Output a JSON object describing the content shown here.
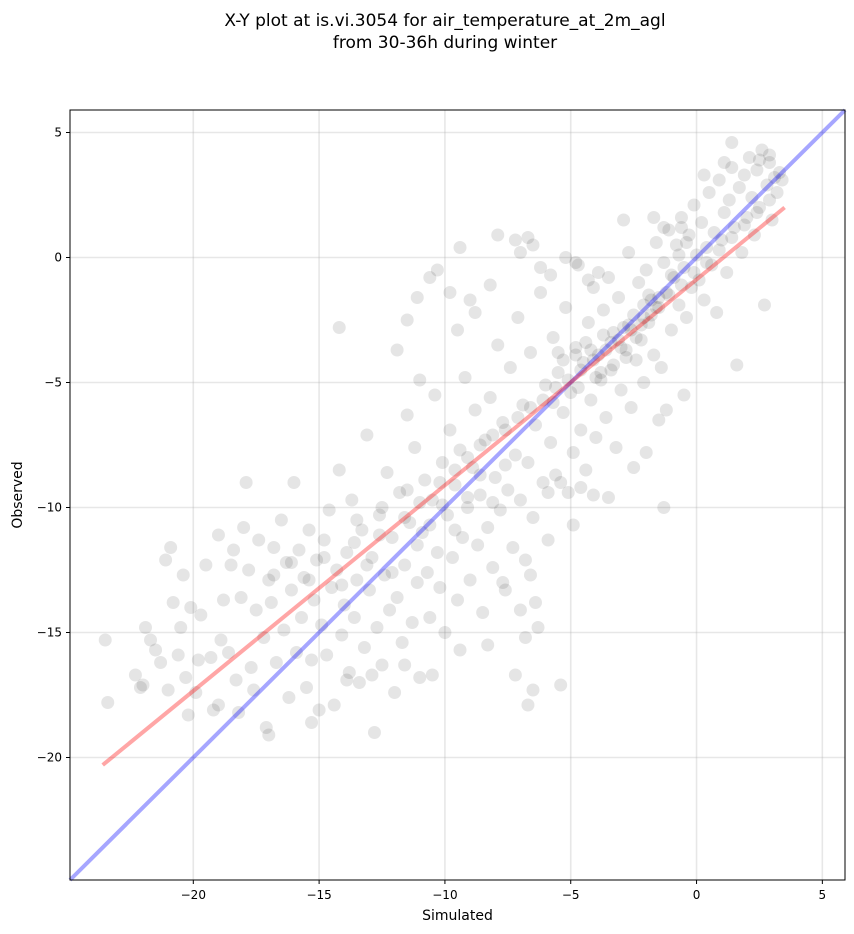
{
  "chart_data": {
    "type": "scatter",
    "title_line1": "X-Y plot at is.vi.3054 for air_temperature_at_2m_agl",
    "title_line2": "from 30-36h during winter",
    "xlabel": "Simulated",
    "ylabel": "Observed",
    "xlim": [
      -24.9,
      5.9
    ],
    "ylim": [
      -24.9,
      5.9
    ],
    "xticks": [
      -20,
      -15,
      -10,
      -5,
      0,
      5
    ],
    "yticks": [
      -20,
      -15,
      -10,
      -5,
      0,
      5
    ],
    "xtick_labels": [
      "−20",
      "−15",
      "−10",
      "−5",
      "0",
      "5"
    ],
    "ytick_labels": [
      "−20",
      "−15",
      "−10",
      "−5",
      "0",
      "5"
    ],
    "grid": true,
    "point_color": "#000000",
    "point_alpha": 0.1,
    "lines": [
      {
        "kind": "identity",
        "color": "#0000ff",
        "alpha": 0.35,
        "x": [
          -24.9,
          5.9
        ],
        "y": [
          -24.9,
          5.9
        ]
      },
      {
        "kind": "fit",
        "color": "#ff0000",
        "alpha": 0.35,
        "x": [
          -23.6,
          3.5
        ],
        "y": [
          -20.3,
          2.0
        ]
      }
    ],
    "points": [
      [
        -23.5,
        -15.3
      ],
      [
        -23.4,
        -17.8
      ],
      [
        -22.3,
        -16.7
      ],
      [
        -22.1,
        -17.2
      ],
      [
        -21.9,
        -14.8
      ],
      [
        -21.7,
        -15.3
      ],
      [
        -21.5,
        -15.7
      ],
      [
        -21.3,
        -16.2
      ],
      [
        -21.1,
        -12.1
      ],
      [
        -21.0,
        -17.3
      ],
      [
        -20.9,
        -11.6
      ],
      [
        -20.8,
        -13.8
      ],
      [
        -20.6,
        -15.9
      ],
      [
        -20.5,
        -14.8
      ],
      [
        -20.4,
        -12.7
      ],
      [
        -20.3,
        -16.8
      ],
      [
        -20.1,
        -14.0
      ],
      [
        -19.9,
        -17.4
      ],
      [
        -19.8,
        -16.1
      ],
      [
        -19.7,
        -14.3
      ],
      [
        -19.5,
        -12.3
      ],
      [
        -19.3,
        -16.0
      ],
      [
        -19.2,
        -18.1
      ],
      [
        -19.0,
        -11.1
      ],
      [
        -18.9,
        -15.3
      ],
      [
        -18.8,
        -13.7
      ],
      [
        -18.6,
        -15.8
      ],
      [
        -18.5,
        -12.3
      ],
      [
        -18.4,
        -11.7
      ],
      [
        -18.3,
        -16.9
      ],
      [
        -18.1,
        -13.6
      ],
      [
        -18.0,
        -10.8
      ],
      [
        -17.9,
        -9.0
      ],
      [
        -17.8,
        -12.5
      ],
      [
        -17.7,
        -16.4
      ],
      [
        -17.6,
        -17.3
      ],
      [
        -17.5,
        -14.1
      ],
      [
        -17.4,
        -11.3
      ],
      [
        -17.2,
        -15.2
      ],
      [
        -17.1,
        -18.8
      ],
      [
        -17.0,
        -12.9
      ],
      [
        -16.9,
        -13.8
      ],
      [
        -16.8,
        -11.6
      ],
      [
        -16.7,
        -16.2
      ],
      [
        -16.5,
        -10.5
      ],
      [
        -16.4,
        -14.9
      ],
      [
        -16.3,
        -12.2
      ],
      [
        -16.2,
        -17.6
      ],
      [
        -16.1,
        -13.3
      ],
      [
        -16.0,
        -9.0
      ],
      [
        -15.9,
        -15.8
      ],
      [
        -15.8,
        -11.7
      ],
      [
        -15.7,
        -14.4
      ],
      [
        -15.6,
        -12.8
      ],
      [
        -15.5,
        -17.2
      ],
      [
        -15.4,
        -10.9
      ],
      [
        -15.3,
        -16.1
      ],
      [
        -15.2,
        -13.7
      ],
      [
        -15.1,
        -12.1
      ],
      [
        -15.0,
        -18.1
      ],
      [
        -14.9,
        -14.7
      ],
      [
        -14.8,
        -11.3
      ],
      [
        -14.7,
        -15.9
      ],
      [
        -14.6,
        -10.1
      ],
      [
        -14.5,
        -13.2
      ],
      [
        -14.4,
        -17.9
      ],
      [
        -14.3,
        -12.5
      ],
      [
        -14.2,
        -8.5
      ],
      [
        -14.1,
        -15.1
      ],
      [
        -14.0,
        -13.9
      ],
      [
        -13.9,
        -11.8
      ],
      [
        -13.8,
        -16.6
      ],
      [
        -13.7,
        -9.7
      ],
      [
        -13.6,
        -14.4
      ],
      [
        -13.5,
        -12.9
      ],
      [
        -13.4,
        -17.0
      ],
      [
        -13.3,
        -10.9
      ],
      [
        -13.2,
        -15.6
      ],
      [
        -13.1,
        -7.1
      ],
      [
        -13.0,
        -13.3
      ],
      [
        -12.9,
        -12.0
      ],
      [
        -12.8,
        -19.0
      ],
      [
        -12.7,
        -14.8
      ],
      [
        -12.6,
        -10.3
      ],
      [
        -12.5,
        -16.3
      ],
      [
        -12.4,
        -12.7
      ],
      [
        -12.3,
        -8.6
      ],
      [
        -12.2,
        -14.1
      ],
      [
        -12.1,
        -11.2
      ],
      [
        -12.0,
        -17.4
      ],
      [
        -11.9,
        -13.6
      ],
      [
        -11.8,
        -9.4
      ],
      [
        -11.7,
        -15.4
      ],
      [
        -11.6,
        -12.3
      ],
      [
        -11.5,
        -6.3
      ],
      [
        -11.4,
        -10.6
      ],
      [
        -11.3,
        -14.6
      ],
      [
        -11.2,
        -7.6
      ],
      [
        -11.1,
        -13.0
      ],
      [
        -11.0,
        -16.8
      ],
      [
        -10.9,
        -11.0
      ],
      [
        -10.8,
        -8.9
      ],
      [
        -10.7,
        -12.6
      ],
      [
        -10.6,
        -14.4
      ],
      [
        -10.5,
        -9.7
      ],
      [
        -10.4,
        -5.5
      ],
      [
        -10.3,
        -11.8
      ],
      [
        -10.2,
        -13.2
      ],
      [
        -10.1,
        -8.2
      ],
      [
        -10.0,
        -15.0
      ],
      [
        -9.9,
        -10.3
      ],
      [
        -9.8,
        -6.9
      ],
      [
        -9.7,
        -12.0
      ],
      [
        -9.6,
        -9.1
      ],
      [
        -9.5,
        -13.7
      ],
      [
        -9.4,
        -7.7
      ],
      [
        -9.3,
        -11.2
      ],
      [
        -9.2,
        -4.8
      ],
      [
        -9.1,
        -10.0
      ],
      [
        -9.0,
        -12.9
      ],
      [
        -8.9,
        -8.4
      ],
      [
        -8.8,
        -6.1
      ],
      [
        -8.7,
        -11.5
      ],
      [
        -8.6,
        -9.5
      ],
      [
        -8.5,
        -14.2
      ],
      [
        -8.4,
        -7.3
      ],
      [
        -8.3,
        -10.8
      ],
      [
        -8.2,
        -5.6
      ],
      [
        -8.1,
        -12.4
      ],
      [
        -8.0,
        -8.8
      ],
      [
        -7.9,
        -3.5
      ],
      [
        -7.8,
        -10.1
      ],
      [
        -7.7,
        -6.6
      ],
      [
        -7.6,
        -13.3
      ],
      [
        -7.5,
        -9.3
      ],
      [
        -7.4,
        -4.4
      ],
      [
        -7.3,
        -11.6
      ],
      [
        -7.2,
        -7.9
      ],
      [
        -7.1,
        -2.4
      ],
      [
        -7.0,
        -9.7
      ],
      [
        -6.9,
        -5.9
      ],
      [
        -6.8,
        -12.1
      ],
      [
        -6.7,
        -8.2
      ],
      [
        -6.6,
        -3.8
      ],
      [
        -6.5,
        -10.4
      ],
      [
        -6.4,
        -6.7
      ],
      [
        -6.3,
        -14.8
      ],
      [
        -6.2,
        -1.4
      ],
      [
        -6.1,
        -9.0
      ],
      [
        -6.0,
        -5.1
      ],
      [
        -5.9,
        -11.3
      ],
      [
        -5.8,
        -7.4
      ],
      [
        -5.7,
        -3.2
      ],
      [
        -5.6,
        -8.7
      ],
      [
        -5.5,
        -4.6
      ],
      [
        -5.4,
        -17.1
      ],
      [
        -5.3,
        -6.2
      ],
      [
        -5.2,
        -2.0
      ],
      [
        -5.1,
        -9.4
      ],
      [
        -5.0,
        -5.4
      ],
      [
        -4.9,
        -7.8
      ],
      [
        -4.8,
        -3.6
      ],
      [
        -4.7,
        -0.3
      ],
      [
        -4.6,
        -6.9
      ],
      [
        -4.5,
        -4.2
      ],
      [
        -4.4,
        -8.5
      ],
      [
        -4.3,
        -2.6
      ],
      [
        -4.2,
        -5.7
      ],
      [
        -4.1,
        -1.2
      ],
      [
        -4.0,
        -7.2
      ],
      [
        -3.9,
        -3.9
      ],
      [
        -3.8,
        -4.9
      ],
      [
        -3.7,
        -2.1
      ],
      [
        -3.6,
        -6.4
      ],
      [
        -3.5,
        -0.8
      ],
      [
        -3.4,
        -4.5
      ],
      [
        -3.3,
        -3.0
      ],
      [
        -3.2,
        -7.6
      ],
      [
        -3.1,
        -1.6
      ],
      [
        -3.0,
        -5.3
      ],
      [
        -2.9,
        -2.8
      ],
      [
        -2.8,
        -3.7
      ],
      [
        -2.7,
        0.2
      ],
      [
        -2.6,
        -6.0
      ],
      [
        -2.5,
        -2.3
      ],
      [
        -2.4,
        -4.1
      ],
      [
        -2.3,
        -1.0
      ],
      [
        -2.2,
        -3.3
      ],
      [
        -2.1,
        -5.0
      ],
      [
        -2.0,
        -0.5
      ],
      [
        -1.9,
        -2.6
      ],
      [
        -1.8,
        -1.7
      ],
      [
        -1.7,
        -3.9
      ],
      [
        -1.6,
        0.6
      ],
      [
        -1.5,
        -2.0
      ],
      [
        -1.4,
        -4.4
      ],
      [
        -1.3,
        -0.2
      ],
      [
        -1.2,
        -1.4
      ],
      [
        -1.1,
        1.1
      ],
      [
        -1.0,
        -2.9
      ],
      [
        -0.9,
        -0.8
      ],
      [
        -0.8,
        0.5
      ],
      [
        -0.7,
        -1.9
      ],
      [
        -0.6,
        1.6
      ],
      [
        -0.5,
        -0.4
      ],
      [
        -0.4,
        -2.4
      ],
      [
        -0.3,
        0.9
      ],
      [
        -0.2,
        -1.2
      ],
      [
        -0.1,
        2.1
      ],
      [
        0.0,
        0.1
      ],
      [
        0.1,
        -0.9
      ],
      [
        0.2,
        1.4
      ],
      [
        0.3,
        -1.7
      ],
      [
        0.4,
        0.4
      ],
      [
        0.5,
        2.6
      ],
      [
        0.6,
        -0.3
      ],
      [
        0.7,
        1.0
      ],
      [
        0.8,
        -2.2
      ],
      [
        0.9,
        3.1
      ],
      [
        1.0,
        0.7
      ],
      [
        1.1,
        1.8
      ],
      [
        1.2,
        -0.6
      ],
      [
        1.3,
        2.3
      ],
      [
        1.4,
        3.6
      ],
      [
        1.5,
        1.2
      ],
      [
        1.6,
        -4.3
      ],
      [
        1.7,
        2.8
      ],
      [
        1.8,
        0.2
      ],
      [
        1.9,
        3.3
      ],
      [
        2.0,
        1.6
      ],
      [
        2.1,
        4.0
      ],
      [
        2.2,
        2.4
      ],
      [
        2.3,
        0.9
      ],
      [
        2.4,
        3.5
      ],
      [
        2.5,
        2.0
      ],
      [
        2.6,
        4.3
      ],
      [
        2.7,
        -1.9
      ],
      [
        2.8,
        2.9
      ],
      [
        2.9,
        3.8
      ],
      [
        3.0,
        1.5
      ],
      [
        3.1,
        3.2
      ],
      [
        3.2,
        2.6
      ],
      [
        3.3,
        3.4
      ],
      [
        3.4,
        3.1
      ],
      [
        -22.0,
        -17.1
      ],
      [
        -20.2,
        -18.3
      ],
      [
        -19.0,
        -17.9
      ],
      [
        -18.2,
        -18.2
      ],
      [
        -17.0,
        -19.1
      ],
      [
        -15.3,
        -18.6
      ],
      [
        -13.9,
        -16.9
      ],
      [
        -12.9,
        -16.7
      ],
      [
        -11.6,
        -16.3
      ],
      [
        -10.5,
        -16.7
      ],
      [
        -9.4,
        -15.7
      ],
      [
        -8.3,
        -15.5
      ],
      [
        -7.2,
        -16.7
      ],
      [
        -6.5,
        -17.3
      ],
      [
        -6.7,
        -17.9
      ],
      [
        -6.8,
        -15.2
      ],
      [
        -7.0,
        -14.1
      ],
      [
        -6.4,
        -13.8
      ],
      [
        -6.6,
        -12.7
      ],
      [
        -7.7,
        -13.0
      ],
      [
        -14.2,
        -2.8
      ],
      [
        -11.9,
        -3.7
      ],
      [
        -11.5,
        -2.5
      ],
      [
        -11.1,
        -1.6
      ],
      [
        -11.0,
        -4.9
      ],
      [
        -10.6,
        -0.8
      ],
      [
        -10.3,
        -0.5
      ],
      [
        -9.8,
        -1.4
      ],
      [
        -9.5,
        -2.9
      ],
      [
        -9.4,
        0.4
      ],
      [
        -9.0,
        -1.7
      ],
      [
        -8.8,
        -2.2
      ],
      [
        -8.2,
        -1.1
      ],
      [
        -7.9,
        0.9
      ],
      [
        -7.2,
        0.7
      ],
      [
        -7.0,
        0.2
      ],
      [
        -6.7,
        0.8
      ],
      [
        -6.5,
        0.5
      ],
      [
        -6.2,
        -0.4
      ],
      [
        -5.8,
        -0.7
      ],
      [
        -5.2,
        0.0
      ],
      [
        -4.8,
        -0.2
      ],
      [
        -4.3,
        -0.9
      ],
      [
        -3.9,
        -0.6
      ],
      [
        -2.9,
        1.5
      ],
      [
        -1.7,
        1.6
      ],
      [
        -1.3,
        1.2
      ],
      [
        -0.6,
        1.2
      ],
      [
        0.3,
        3.3
      ],
      [
        1.1,
        3.8
      ],
      [
        1.4,
        4.6
      ],
      [
        2.5,
        3.9
      ],
      [
        2.9,
        4.1
      ],
      [
        -4.1,
        -9.5
      ],
      [
        -3.5,
        -9.6
      ],
      [
        -2.5,
        -8.4
      ],
      [
        -2.0,
        -7.8
      ],
      [
        -1.5,
        -6.5
      ],
      [
        -1.2,
        -6.1
      ],
      [
        -0.5,
        -5.5
      ],
      [
        -1.3,
        -10.0
      ],
      [
        -4.9,
        -10.7
      ],
      [
        -4.6,
        -9.2
      ],
      [
        -5.4,
        -9.0
      ],
      [
        -5.9,
        -9.4
      ],
      [
        -13.5,
        -10.5
      ],
      [
        -12.5,
        -10.0
      ],
      [
        -11.5,
        -9.3
      ],
      [
        -11.0,
        -9.8
      ],
      [
        -10.2,
        -9.0
      ],
      [
        -9.6,
        -8.5
      ],
      [
        -9.1,
        -8.0
      ],
      [
        -8.6,
        -7.5
      ],
      [
        -8.1,
        -7.1
      ],
      [
        -7.6,
        -6.9
      ],
      [
        -7.1,
        -6.4
      ],
      [
        -6.6,
        -6.0
      ],
      [
        -6.1,
        -5.7
      ],
      [
        -5.6,
        -5.2
      ],
      [
        -5.1,
        -4.9
      ],
      [
        -4.6,
        -4.5
      ],
      [
        -4.1,
        -4.1
      ],
      [
        -3.6,
        -3.7
      ],
      [
        -3.1,
        -3.3
      ],
      [
        -2.6,
        -2.9
      ],
      [
        -2.1,
        -2.4
      ],
      [
        -1.6,
        -2.0
      ],
      [
        -1.1,
        -1.5
      ],
      [
        -0.6,
        -1.1
      ],
      [
        -0.1,
        -0.6
      ],
      [
        0.4,
        -0.2
      ],
      [
        0.9,
        0.3
      ],
      [
        1.4,
        0.8
      ],
      [
        1.9,
        1.3
      ],
      [
        2.4,
        1.8
      ],
      [
        2.9,
        2.3
      ],
      [
        -5.3,
        -4.1
      ],
      [
        -4.8,
        -3.9
      ],
      [
        -4.4,
        -3.4
      ],
      [
        -4.0,
        -4.8
      ],
      [
        -3.7,
        -3.1
      ],
      [
        -3.3,
        -4.3
      ],
      [
        -3.0,
        -3.6
      ],
      [
        -2.7,
        -2.7
      ],
      [
        -2.4,
        -3.2
      ],
      [
        -2.1,
        -1.9
      ],
      [
        -1.8,
        -2.3
      ],
      [
        -1.5,
        -1.6
      ],
      [
        -5.7,
        -5.8
      ],
      [
        -5.5,
        -3.8
      ],
      [
        -4.7,
        -5.2
      ],
      [
        -4.2,
        -3.7
      ],
      [
        -3.8,
        -4.6
      ],
      [
        -3.4,
        -3.4
      ],
      [
        -2.8,
        -4.0
      ],
      [
        -2.2,
        -2.7
      ],
      [
        -1.9,
        -1.5
      ],
      [
        -1.0,
        -0.7
      ],
      [
        -0.7,
        0.1
      ],
      [
        -0.4,
        0.6
      ],
      [
        -16.8,
        -12.7
      ],
      [
        -16.1,
        -12.2
      ],
      [
        -15.4,
        -12.9
      ],
      [
        -14.8,
        -12.0
      ],
      [
        -14.1,
        -13.1
      ],
      [
        -13.6,
        -11.4
      ],
      [
        -13.1,
        -12.3
      ],
      [
        -12.6,
        -11.1
      ],
      [
        -12.1,
        -12.6
      ],
      [
        -11.6,
        -10.4
      ],
      [
        -11.1,
        -11.5
      ],
      [
        -10.6,
        -10.7
      ],
      [
        -10.1,
        -9.9
      ],
      [
        -9.6,
        -10.9
      ],
      [
        -9.1,
        -9.6
      ],
      [
        -8.6,
        -8.7
      ],
      [
        -8.1,
        -9.8
      ],
      [
        -7.6,
        -8.3
      ]
    ]
  }
}
